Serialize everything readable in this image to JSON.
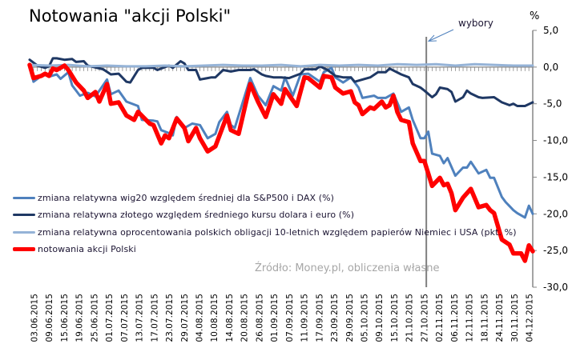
{
  "chart_data": {
    "type": "line",
    "title": "Notowania \"akcji Polski\"",
    "ylabel": "%",
    "ylim": [
      -30,
      5
    ],
    "yticks": [
      "5,0",
      "0,0",
      "-5,0",
      "-10,0",
      "-15,0",
      "-20,0",
      "-25,0",
      "-30,0"
    ],
    "ytick_values": [
      5,
      0,
      -5,
      -10,
      -15,
      -20,
      -25,
      -30
    ],
    "x_unit": "trading day index",
    "xlim": [
      0,
      130
    ],
    "categories": [
      "03.06.2015",
      "09.06.2015",
      "15.06.2015",
      "19.06.2015",
      "25.06.2015",
      "01.07.2015",
      "07.07.2015",
      "13.07.2015",
      "17.07.2015",
      "23.07.2015",
      "29.07.2015",
      "04.08.2015",
      "10.08.2015",
      "14.08.2015",
      "20.08.2015",
      "26.08.2015",
      "01.09.2015",
      "07.09.2015",
      "11.09.2015",
      "17.09.2015",
      "23.09.2015",
      "29.09.2015",
      "05.10.2015",
      "09.10.2015",
      "15.10.2015",
      "21.10.2015",
      "27.10.2015",
      "02.11.2015",
      "06.11.2015",
      "12.11.2015",
      "18.11.2015",
      "24.11.2015",
      "30.11.2015",
      "04.12.2015"
    ],
    "legend_position": "bottom-left",
    "grid": false,
    "annotation": {
      "label": "wybory",
      "x": 102.5
    },
    "source": "Źródło: Money.pl, obliczenia własne",
    "series": [
      {
        "name": "zmiana relatywna wig20 względem średniej dla S&P500 i DAX (%)",
        "color": "#4f81bd",
        "width": 3,
        "points": [
          [
            0,
            0.3
          ],
          [
            1,
            -2.0
          ],
          [
            3,
            -1.2
          ],
          [
            4,
            -1.0
          ],
          [
            5,
            -1.3
          ],
          [
            7,
            -1.0
          ],
          [
            8,
            -1.6
          ],
          [
            10,
            -0.7
          ],
          [
            11,
            -2.5
          ],
          [
            13,
            -3.9
          ],
          [
            15,
            -3.5
          ],
          [
            17,
            -4.0
          ],
          [
            20,
            -1.7
          ],
          [
            21,
            -3.7
          ],
          [
            23,
            -3.2
          ],
          [
            25,
            -4.7
          ],
          [
            28,
            -5.3
          ],
          [
            29,
            -7.2
          ],
          [
            32,
            -7.3
          ],
          [
            33,
            -7.4
          ],
          [
            34,
            -8.6
          ],
          [
            36,
            -9.0
          ],
          [
            37,
            -9.3
          ],
          [
            38,
            -6.8
          ],
          [
            40,
            -8.3
          ],
          [
            42,
            -7.7
          ],
          [
            44,
            -7.9
          ],
          [
            46,
            -9.7
          ],
          [
            48,
            -9.1
          ],
          [
            49,
            -7.5
          ],
          [
            51,
            -6.1
          ],
          [
            52,
            -7.9
          ],
          [
            53,
            -8.3
          ],
          [
            57,
            -1.5
          ],
          [
            59,
            -3.9
          ],
          [
            61,
            -5.2
          ],
          [
            63,
            -2.6
          ],
          [
            65,
            -3.2
          ],
          [
            66,
            -1.4
          ],
          [
            68,
            -3.9
          ],
          [
            70,
            -1.0
          ],
          [
            72,
            -0.9
          ],
          [
            75,
            -2.0
          ],
          [
            76,
            -0.7
          ],
          [
            78,
            -0.1
          ],
          [
            79,
            -1.4
          ],
          [
            81,
            -2.1
          ],
          [
            83,
            -1.4
          ],
          [
            85,
            -2.8
          ],
          [
            86,
            -4.2
          ],
          [
            89,
            -3.9
          ],
          [
            90,
            -4.2
          ],
          [
            92,
            -4.2
          ],
          [
            94,
            -3.6
          ],
          [
            96,
            -6.1
          ],
          [
            98,
            -5.5
          ],
          [
            99,
            -7.2
          ],
          [
            101,
            -9.7
          ],
          [
            102,
            -9.7
          ],
          [
            103,
            -8.8
          ],
          [
            104,
            -11.8
          ],
          [
            106,
            -12.1
          ],
          [
            107,
            -13.1
          ],
          [
            108,
            -12.4
          ],
          [
            110,
            -14.8
          ],
          [
            112,
            -13.7
          ],
          [
            113,
            -13.7
          ],
          [
            114,
            -12.9
          ],
          [
            116,
            -14.5
          ],
          [
            118,
            -14.0
          ],
          [
            119,
            -15.1
          ],
          [
            120,
            -15.1
          ],
          [
            122,
            -17.7
          ],
          [
            123,
            -18.4
          ],
          [
            125,
            -19.5
          ],
          [
            126,
            -19.9
          ],
          [
            128,
            -20.5
          ],
          [
            129,
            -18.9
          ],
          [
            130,
            -20.0
          ]
        ]
      },
      {
        "name": "zmiana relatywna złotego względem średniego kursu dolara i euro (%)",
        "color": "#1f3864",
        "width": 3,
        "points": [
          [
            0,
            1.0
          ],
          [
            2,
            0.2
          ],
          [
            4,
            -0.1
          ],
          [
            5,
            0.1
          ],
          [
            6,
            1.2
          ],
          [
            7,
            1.2
          ],
          [
            9,
            1.0
          ],
          [
            11,
            1.1
          ],
          [
            12,
            0.7
          ],
          [
            14,
            0.8
          ],
          [
            15,
            0.2
          ],
          [
            19,
            -0.3
          ],
          [
            21,
            -1.0
          ],
          [
            23,
            -0.9
          ],
          [
            25,
            -2.0
          ],
          [
            26,
            -2.1
          ],
          [
            28,
            -0.4
          ],
          [
            29,
            -0.1
          ],
          [
            32,
            -0.1
          ],
          [
            33,
            -0.4
          ],
          [
            36,
            0.2
          ],
          [
            37,
            -0.1
          ],
          [
            39,
            0.8
          ],
          [
            40,
            0.5
          ],
          [
            41,
            -0.4
          ],
          [
            43,
            -0.4
          ],
          [
            44,
            -1.7
          ],
          [
            46,
            -1.5
          ],
          [
            47,
            -1.4
          ],
          [
            48,
            -1.4
          ],
          [
            50,
            -0.4
          ],
          [
            52,
            -0.6
          ],
          [
            54,
            -0.4
          ],
          [
            57,
            -0.4
          ],
          [
            58,
            -0.3
          ],
          [
            60,
            -1.0
          ],
          [
            61,
            -1.2
          ],
          [
            63,
            -1.4
          ],
          [
            65,
            -1.4
          ],
          [
            67,
            -1.5
          ],
          [
            70,
            -0.9
          ],
          [
            71,
            -0.3
          ],
          [
            74,
            -0.3
          ],
          [
            75,
            0.1
          ],
          [
            77,
            -0.4
          ],
          [
            79,
            -1.2
          ],
          [
            81,
            -1.4
          ],
          [
            83,
            -1.4
          ],
          [
            84,
            -2.0
          ],
          [
            86,
            -1.7
          ],
          [
            88,
            -1.4
          ],
          [
            90,
            -0.7
          ],
          [
            92,
            -0.7
          ],
          [
            93,
            -0.2
          ],
          [
            96,
            -1.0
          ],
          [
            98,
            -1.4
          ],
          [
            99,
            -2.3
          ],
          [
            101,
            -2.8
          ],
          [
            102,
            -3.2
          ],
          [
            104,
            -4.1
          ],
          [
            105,
            -3.7
          ],
          [
            106,
            -2.8
          ],
          [
            108,
            -3.0
          ],
          [
            109,
            -3.4
          ],
          [
            110,
            -4.7
          ],
          [
            112,
            -4.1
          ],
          [
            113,
            -3.2
          ],
          [
            114,
            -3.6
          ],
          [
            116,
            -4.1
          ],
          [
            117,
            -4.2
          ],
          [
            120,
            -4.1
          ],
          [
            122,
            -4.8
          ],
          [
            124,
            -5.2
          ],
          [
            125,
            -5.0
          ],
          [
            126,
            -5.3
          ],
          [
            128,
            -5.3
          ],
          [
            130,
            -4.8
          ]
        ]
      },
      {
        "name": "zmiana relatywna oprocentowania polskich obligacji 10-letnich względem papierów Niemiec i USA (pkt. %)",
        "color": "#95b3d7",
        "width": 3,
        "points": [
          [
            0,
            0.3
          ],
          [
            5,
            0.2
          ],
          [
            10,
            0.3
          ],
          [
            15,
            0.1
          ],
          [
            20,
            0.2
          ],
          [
            25,
            0.1
          ],
          [
            30,
            0.1
          ],
          [
            35,
            0.2
          ],
          [
            40,
            0.1
          ],
          [
            45,
            0.2
          ],
          [
            50,
            0.3
          ],
          [
            55,
            0.2
          ],
          [
            60,
            0.2
          ],
          [
            65,
            0.3
          ],
          [
            70,
            0.1
          ],
          [
            75,
            0.3
          ],
          [
            80,
            0.2
          ],
          [
            85,
            0.3
          ],
          [
            90,
            0.2
          ],
          [
            95,
            0.4
          ],
          [
            100,
            0.3
          ],
          [
            105,
            0.4
          ],
          [
            110,
            0.2
          ],
          [
            115,
            0.4
          ],
          [
            120,
            0.3
          ],
          [
            125,
            0.2
          ],
          [
            130,
            0.2
          ]
        ]
      },
      {
        "name": "notowania akcji Polski",
        "color": "#ff0000",
        "width": 5.5,
        "points": [
          [
            0,
            0.3
          ],
          [
            1,
            -1.5
          ],
          [
            3,
            -1.2
          ],
          [
            4,
            -0.9
          ],
          [
            5,
            -1.2
          ],
          [
            6,
            -0.2
          ],
          [
            7,
            -0.4
          ],
          [
            9,
            0.2
          ],
          [
            10,
            -0.4
          ],
          [
            12,
            -2.1
          ],
          [
            14,
            -3.2
          ],
          [
            15,
            -4.2
          ],
          [
            17,
            -3.4
          ],
          [
            18,
            -4.7
          ],
          [
            20,
            -2.3
          ],
          [
            21,
            -5.0
          ],
          [
            23,
            -4.8
          ],
          [
            25,
            -6.6
          ],
          [
            27,
            -7.2
          ],
          [
            28,
            -6.1
          ],
          [
            31,
            -7.7
          ],
          [
            32,
            -7.9
          ],
          [
            34,
            -10.4
          ],
          [
            35,
            -9.3
          ],
          [
            36,
            -9.7
          ],
          [
            38,
            -7.0
          ],
          [
            40,
            -8.3
          ],
          [
            41,
            -10.1
          ],
          [
            43,
            -8.3
          ],
          [
            44,
            -9.7
          ],
          [
            46,
            -11.5
          ],
          [
            48,
            -10.8
          ],
          [
            51,
            -6.6
          ],
          [
            52,
            -8.6
          ],
          [
            54,
            -9.1
          ],
          [
            57,
            -2.3
          ],
          [
            59,
            -4.7
          ],
          [
            61,
            -6.8
          ],
          [
            63,
            -3.7
          ],
          [
            65,
            -5.0
          ],
          [
            66,
            -3.0
          ],
          [
            69,
            -5.3
          ],
          [
            71,
            -1.4
          ],
          [
            72,
            -1.5
          ],
          [
            75,
            -2.8
          ],
          [
            76,
            -1.2
          ],
          [
            78,
            -1.4
          ],
          [
            79,
            -2.8
          ],
          [
            81,
            -3.6
          ],
          [
            83,
            -3.3
          ],
          [
            84,
            -4.8
          ],
          [
            85,
            -5.2
          ],
          [
            86,
            -6.4
          ],
          [
            88,
            -5.5
          ],
          [
            89,
            -5.7
          ],
          [
            91,
            -4.7
          ],
          [
            92,
            -5.5
          ],
          [
            93,
            -5.2
          ],
          [
            94,
            -3.9
          ],
          [
            95,
            -6.1
          ],
          [
            96,
            -7.2
          ],
          [
            98,
            -7.5
          ],
          [
            99,
            -10.4
          ],
          [
            101,
            -12.8
          ],
          [
            102,
            -12.8
          ],
          [
            103,
            -14.5
          ],
          [
            104,
            -16.2
          ],
          [
            106,
            -15.1
          ],
          [
            107,
            -16.1
          ],
          [
            108,
            -15.9
          ],
          [
            109,
            -17.2
          ],
          [
            110,
            -19.5
          ],
          [
            112,
            -17.8
          ],
          [
            114,
            -16.6
          ],
          [
            116,
            -19.1
          ],
          [
            118,
            -18.8
          ],
          [
            119,
            -19.5
          ],
          [
            120,
            -19.9
          ],
          [
            122,
            -23.5
          ],
          [
            124,
            -24.2
          ],
          [
            125,
            -25.4
          ],
          [
            127,
            -25.4
          ],
          [
            128,
            -26.4
          ],
          [
            129,
            -24.3
          ],
          [
            130,
            -25.1
          ]
        ]
      }
    ]
  }
}
